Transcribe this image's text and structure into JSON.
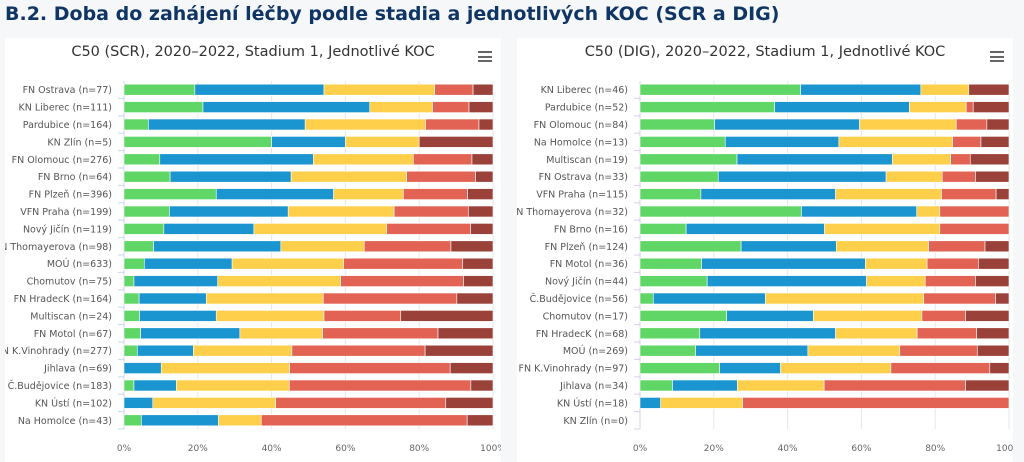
{
  "heading": "B.2. Doba do zahájení léčby podle stadia a jednotlivých KOC (SCR a DIG)",
  "colors": [
    "#5fd665",
    "#1b95d0",
    "#fecf4a",
    "#e26353",
    "#9a4239"
  ],
  "menu_icon": "hamburger-menu-icon",
  "chart_data": [
    {
      "type": "bar",
      "orientation": "horizontal",
      "stacking": "percent",
      "title": "C50 (SCR), 2020–2022, Stadium 1, Jednotlivé KOC",
      "xlim": [
        0,
        100
      ],
      "x_ticks": [
        "0%",
        "20%",
        "40%",
        "60%",
        "80%",
        "100%"
      ],
      "grid": true,
      "categories": [
        "FN Ostrava (n=77)",
        "KN Liberec (n=111)",
        "Pardubice (n=164)",
        "KN Zlín (n=5)",
        "FN Olomouc (n=276)",
        "FN Brno (n=64)",
        "FN Plzeň (n=396)",
        "VFN Praha (n=199)",
        "Nový Jičín (n=119)",
        "FN Thomayerova (n=98)",
        "MOÚ (n=633)",
        "Chomutov (n=75)",
        "FN HradecK (n=164)",
        "Multiscan (n=24)",
        "FN Motol (n=67)",
        "FN K.Vinohrady (n=277)",
        "Jihlava (n=69)",
        "Č.Budějovice (n=183)",
        "KN Ústí (n=102)",
        "Na Homolce (n=43)"
      ],
      "series": [
        {
          "values": [
            19.2,
            21.4,
            6.6,
            40.0,
            9.7,
            12.5,
            25.0,
            12.3,
            10.8,
            8.0,
            5.5,
            2.7,
            4.1,
            4.2,
            4.5,
            3.6,
            0.0,
            2.7,
            0.0,
            4.7
          ]
        },
        {
          "values": [
            35.0,
            45.2,
            42.5,
            20.0,
            41.6,
            32.8,
            31.8,
            32.2,
            24.4,
            34.5,
            23.8,
            22.7,
            18.2,
            20.8,
            26.9,
            15.2,
            10.1,
            11.5,
            7.8,
            20.9
          ]
        },
        {
          "values": [
            30.0,
            17.0,
            32.6,
            20.0,
            27.1,
            31.3,
            18.9,
            28.7,
            36.0,
            22.6,
            30.2,
            33.3,
            31.7,
            29.2,
            22.4,
            26.7,
            34.8,
            30.6,
            33.3,
            11.6
          ]
        },
        {
          "values": [
            10.4,
            9.9,
            14.5,
            0.0,
            15.9,
            18.7,
            17.4,
            20.1,
            22.7,
            23.5,
            32.3,
            33.3,
            36.2,
            20.8,
            31.3,
            36.1,
            43.5,
            49.2,
            46.1,
            55.8
          ]
        },
        {
          "values": [
            5.4,
            6.5,
            3.8,
            20.0,
            5.7,
            4.7,
            6.9,
            6.7,
            6.1,
            11.4,
            8.2,
            8.0,
            9.8,
            25.0,
            14.9,
            18.4,
            11.6,
            6.0,
            12.8,
            7.0
          ]
        }
      ]
    },
    {
      "type": "bar",
      "orientation": "horizontal",
      "stacking": "percent",
      "title": "C50 (DIG), 2020–2022, Stadium 1, Jednotlivé KOC",
      "xlim": [
        0,
        100
      ],
      "x_ticks": [
        "0%",
        "20%",
        "40%",
        "60%",
        "80%",
        "100%"
      ],
      "grid": true,
      "categories": [
        "KN Liberec (n=46)",
        "Pardubice (n=52)",
        "FN Olomouc (n=84)",
        "Na Homolce (n=13)",
        "Multiscan (n=19)",
        "FN Ostrava (n=33)",
        "VFN Praha (n=115)",
        "FN Thomayerova (n=32)",
        "FN Brno (n=16)",
        "FN Plzeň (n=124)",
        "FN Motol (n=36)",
        "Nový Jičín (n=44)",
        "Č.Budějovice (n=56)",
        "Chomutov (n=17)",
        "FN HradecK (n=68)",
        "MOÚ (n=269)",
        "FN K.Vinohrady (n=97)",
        "Jihlava (n=34)",
        "KN Ústí (n=18)",
        "KN Zlín (n=0)"
      ],
      "series": [
        {
          "values": [
            43.5,
            36.5,
            20.2,
            23.1,
            26.3,
            21.2,
            16.5,
            43.75,
            12.5,
            27.4,
            16.7,
            18.2,
            3.6,
            23.5,
            16.2,
            15.1,
            21.6,
            8.8,
            0.0,
            0
          ]
        },
        {
          "values": [
            32.6,
            36.5,
            39.3,
            30.8,
            42.1,
            45.5,
            36.5,
            31.25,
            37.5,
            25.8,
            44.4,
            43.2,
            30.4,
            23.5,
            36.8,
            30.4,
            16.5,
            17.6,
            5.6,
            0
          ]
        },
        {
          "values": [
            13.0,
            15.4,
            26.2,
            30.8,
            15.8,
            15.2,
            28.7,
            6.25,
            31.25,
            25.0,
            16.7,
            15.9,
            42.9,
            29.4,
            22.1,
            24.9,
            29.9,
            23.5,
            22.2,
            0
          ]
        },
        {
          "values": [
            0.0,
            1.9,
            8.3,
            7.7,
            5.3,
            9.0,
            14.8,
            18.75,
            18.75,
            15.3,
            13.9,
            13.6,
            19.5,
            11.8,
            16.1,
            21.0,
            26.8,
            38.3,
            72.2,
            0
          ]
        },
        {
          "values": [
            10.9,
            9.7,
            6.0,
            7.6,
            10.5,
            9.1,
            3.5,
            0.0,
            0.0,
            6.5,
            8.3,
            9.1,
            3.6,
            11.8,
            8.8,
            8.6,
            5.2,
            11.8,
            0.0,
            0
          ]
        }
      ]
    }
  ]
}
